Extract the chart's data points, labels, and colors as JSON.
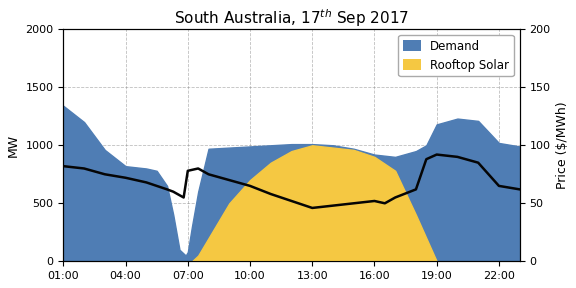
{
  "title": "South Australia, 17$^{th}$ Sep 2017",
  "ylabel_left": "MW",
  "ylabel_right": "Price ($/MWh)",
  "ylim_left": [
    0,
    2000
  ],
  "ylim_right": [
    0,
    200
  ],
  "demand_color": "#4f7db4",
  "solar_color": "#f5c842",
  "price_color": "#050505",
  "xtick_labels": [
    "01:00",
    "04:00",
    "07:00",
    "10:00",
    "13:00",
    "16:00",
    "19:00",
    "22:00"
  ],
  "xtick_pos": [
    1,
    4,
    7,
    10,
    13,
    16,
    19,
    22
  ],
  "xlim": [
    1,
    23
  ],
  "hours": [
    1,
    2,
    3,
    4,
    5,
    5.5,
    6,
    6.3,
    6.6,
    6.9,
    7,
    7.2,
    7.5,
    8,
    9,
    10,
    11,
    12,
    13,
    14,
    15,
    16,
    17,
    18,
    18.5,
    19,
    20,
    21,
    22,
    23
  ],
  "demand": [
    1340,
    1200,
    960,
    820,
    800,
    780,
    650,
    400,
    100,
    50,
    80,
    300,
    600,
    970,
    980,
    990,
    1000,
    1010,
    1010,
    1000,
    970,
    920,
    900,
    950,
    1000,
    1180,
    1230,
    1210,
    1020,
    990
  ],
  "solar": [
    0,
    0,
    0,
    0,
    0,
    0,
    0,
    0,
    0,
    0,
    0,
    0,
    50,
    200,
    500,
    700,
    850,
    950,
    1000,
    980,
    960,
    900,
    780,
    400,
    200,
    0,
    0,
    0,
    0,
    0
  ],
  "price_hours": [
    1,
    2,
    3,
    4,
    4.5,
    5,
    5.5,
    6,
    6.3,
    6.5,
    6.8,
    7,
    7.5,
    8,
    9,
    10,
    11,
    12,
    13,
    14,
    15,
    16,
    16.5,
    17,
    18,
    18.5,
    19,
    20,
    21,
    22,
    23
  ],
  "price": [
    82,
    80,
    75,
    72,
    70,
    68,
    65,
    62,
    60,
    58,
    55,
    78,
    80,
    75,
    70,
    65,
    58,
    52,
    46,
    48,
    50,
    52,
    50,
    55,
    62,
    88,
    92,
    90,
    85,
    65,
    62
  ]
}
